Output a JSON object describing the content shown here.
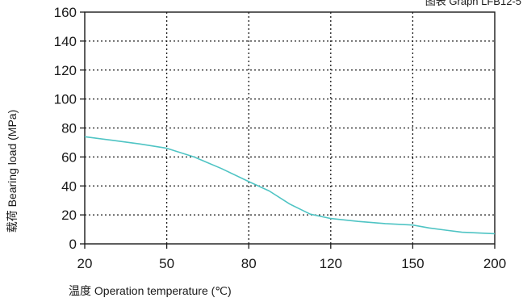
{
  "chart_data": {
    "type": "line",
    "caption": "图表 Graph LFB12-5",
    "xlabel": "温度 Operation temperature (℃)",
    "ylabel": "载荷 Bearing load (MPa)",
    "x_ticks": [
      "20",
      "50",
      "80",
      "120",
      "150",
      "200"
    ],
    "y_ticks": [
      0,
      20,
      40,
      60,
      80,
      100,
      120,
      140,
      160
    ],
    "ylim": [
      0,
      160
    ],
    "grid": true,
    "colors": {
      "line": "#4fc4c4",
      "frame": "#1a1a1a",
      "grid": "#1a1a1a"
    },
    "series": [
      {
        "x": [
          20,
          30,
          40,
          50,
          60,
          70,
          80,
          90,
          100,
          110,
          120,
          130,
          140,
          150,
          160,
          170,
          180,
          200
        ],
        "y": [
          74,
          71.5,
          69,
          66,
          60,
          52,
          43,
          36.5,
          27.5,
          20.5,
          17.5,
          15.5,
          14,
          13,
          11,
          9.5,
          8,
          7
        ]
      }
    ]
  }
}
